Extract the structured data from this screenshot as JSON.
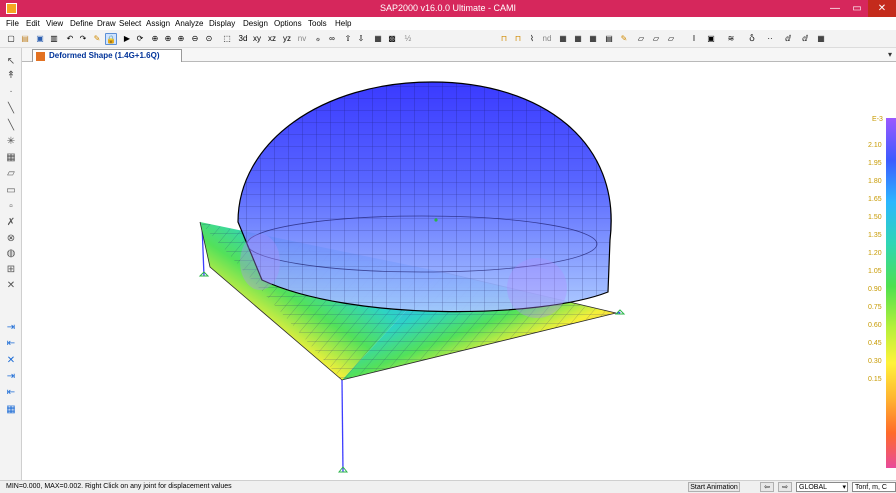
{
  "window": {
    "title": "SAP2000 v16.0.0 Ultimate  - CAMI",
    "minimize": "—",
    "maximize": "▭",
    "close": "✕"
  },
  "menu": [
    "File",
    "Edit",
    "View",
    "Define",
    "Draw",
    "Select",
    "Assign",
    "Analyze",
    "Display",
    "Design",
    "Options",
    "Tools",
    "Help"
  ],
  "toolbar": {
    "view_buttons": [
      "xy",
      "xz",
      "yz",
      "nv"
    ],
    "view_3d": "3d",
    "nd": "nd",
    "off": "Off",
    "fraction": "½"
  },
  "tab": {
    "label": "Deformed Shape (1.4G+1.6Q)"
  },
  "legend": {
    "header": "E-3",
    "values": [
      "2.10",
      "1.95",
      "1.80",
      "1.65",
      "1.50",
      "1.35",
      "1.20",
      "1.05",
      "0.90",
      "0.75",
      "0.60",
      "0.45",
      "0.30",
      "0.15"
    ]
  },
  "status": {
    "message": "MIN=0.000, MAX=0.002. Right Click on any joint for displacement values",
    "start_animation": "Start Animation",
    "prev": "⇦",
    "next": "⇨",
    "coord_system": "GLOBAL",
    "units": "Tonf, m, C"
  },
  "colors": {
    "accent": "#d6275c",
    "dome": "#3a55ff",
    "frame": "#3d3dff"
  }
}
